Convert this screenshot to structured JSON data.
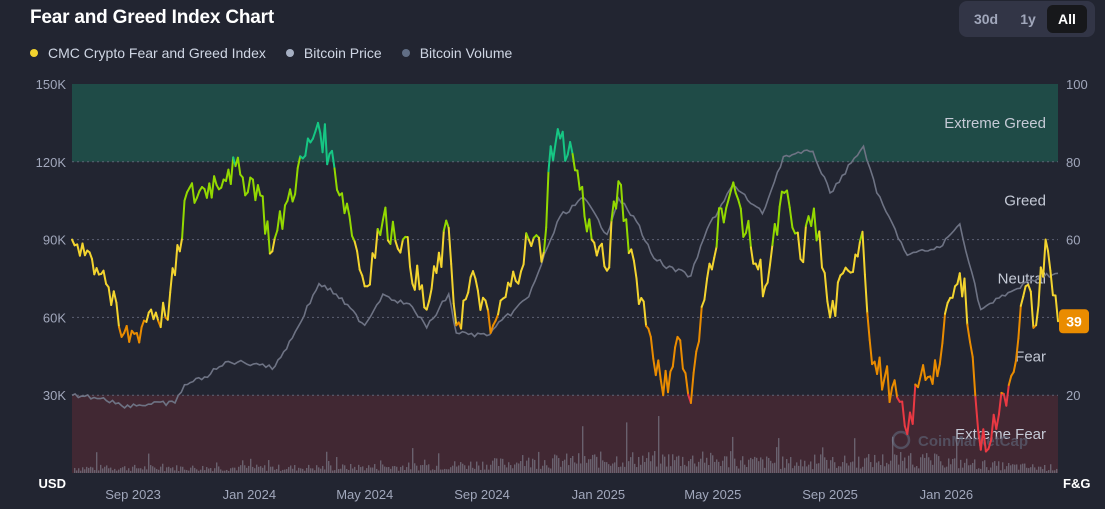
{
  "header": {
    "title": "Fear and Greed Index Chart",
    "ranges": [
      "30d",
      "1y",
      "All"
    ],
    "active_range": "All"
  },
  "legend": [
    {
      "label": "CMC Crypto Fear and Greed Index",
      "color": "#f3d42f"
    },
    {
      "label": "Bitcoin Price",
      "color": "#a6b0c3"
    },
    {
      "label": "Bitcoin Volume",
      "color": "#616e85"
    }
  ],
  "watermark": "CoinMarketCap",
  "chart_data": {
    "type": "line",
    "x_ticks": [
      "Sep 2023",
      "Jan 2024",
      "May 2024",
      "Sep 2024",
      "Jan 2025",
      "May 2025",
      "Sep 2025",
      "Jan 2026"
    ],
    "x_range": [
      "2023-06-29",
      "2026-04-28"
    ],
    "left_axis": {
      "label": "USD",
      "ticks": [
        "30K",
        "60K",
        "90K",
        "120K",
        "150K"
      ],
      "range": [
        0,
        150000
      ]
    },
    "right_axis": {
      "label": "F&G",
      "ticks": [
        "20",
        "40",
        "60",
        "80",
        "100"
      ],
      "range": [
        0,
        100
      ]
    },
    "zones": [
      {
        "label": "Extreme Greed",
        "from": 80,
        "to": 100,
        "color": "#16c784"
      },
      {
        "label": "Greed",
        "from": 60,
        "to": 80,
        "color": "#93d900"
      },
      {
        "label": "Neutral",
        "from": 40,
        "to": 60,
        "color": "#f3d42f"
      },
      {
        "label": "Fear",
        "from": 20,
        "to": 40,
        "color": "#ea8c00"
      },
      {
        "label": "Extreme Fear",
        "from": 0,
        "to": 20,
        "color": "#ea3943"
      }
    ],
    "current_value": "39",
    "series": [
      {
        "name": "CMC Crypto Fear and Greed Index",
        "axis": "right",
        "points": [
          [
            "2023-06-29",
            60
          ],
          [
            "2023-07-10",
            59
          ],
          [
            "2023-07-20",
            55
          ],
          [
            "2023-08-01",
            52
          ],
          [
            "2023-08-20",
            35
          ],
          [
            "2023-09-05",
            36
          ],
          [
            "2023-09-20",
            42
          ],
          [
            "2023-10-05",
            40
          ],
          [
            "2023-10-20",
            57
          ],
          [
            "2023-10-25",
            70
          ],
          [
            "2023-11-15",
            73
          ],
          [
            "2023-12-10",
            78
          ],
          [
            "2023-12-25",
            76
          ],
          [
            "2024-01-10",
            74
          ],
          [
            "2024-01-25",
            57
          ],
          [
            "2024-02-10",
            70
          ],
          [
            "2024-03-05",
            85
          ],
          [
            "2024-03-13",
            90
          ],
          [
            "2024-03-25",
            82
          ],
          [
            "2024-04-15",
            66
          ],
          [
            "2024-05-01",
            48
          ],
          [
            "2024-05-20",
            65
          ],
          [
            "2024-06-10",
            60
          ],
          [
            "2024-07-05",
            42
          ],
          [
            "2024-07-28",
            63
          ],
          [
            "2024-08-05",
            38
          ],
          [
            "2024-08-25",
            50
          ],
          [
            "2024-09-10",
            36
          ],
          [
            "2024-10-01",
            48
          ],
          [
            "2024-10-20",
            60
          ],
          [
            "2024-11-05",
            57
          ],
          [
            "2024-11-12",
            84
          ],
          [
            "2024-11-22",
            86
          ],
          [
            "2024-12-05",
            82
          ],
          [
            "2024-12-25",
            60
          ],
          [
            "2025-01-10",
            52
          ],
          [
            "2025-01-22",
            75
          ],
          [
            "2025-02-10",
            50
          ],
          [
            "2025-02-25",
            35
          ],
          [
            "2025-03-10",
            20
          ],
          [
            "2025-03-25",
            35
          ],
          [
            "2025-04-08",
            18
          ],
          [
            "2025-04-25",
            50
          ],
          [
            "2025-05-10",
            68
          ],
          [
            "2025-05-25",
            72
          ],
          [
            "2025-06-10",
            58
          ],
          [
            "2025-06-25",
            48
          ],
          [
            "2025-07-15",
            72
          ],
          [
            "2025-08-01",
            55
          ],
          [
            "2025-08-15",
            68
          ],
          [
            "2025-09-01",
            40
          ],
          [
            "2025-09-20",
            52
          ],
          [
            "2025-10-05",
            62
          ],
          [
            "2025-10-15",
            28
          ],
          [
            "2025-11-05",
            22
          ],
          [
            "2025-11-21",
            10
          ],
          [
            "2025-12-05",
            25
          ],
          [
            "2025-12-25",
            28
          ],
          [
            "2026-01-05",
            45
          ],
          [
            "2026-01-20",
            50
          ],
          [
            "2026-02-06",
            6
          ],
          [
            "2026-02-25",
            15
          ],
          [
            "2026-03-10",
            25
          ],
          [
            "2026-03-25",
            48
          ],
          [
            "2026-04-05",
            38
          ],
          [
            "2026-04-15",
            60
          ],
          [
            "2026-04-20",
            52
          ],
          [
            "2026-04-28",
            39
          ]
        ]
      },
      {
        "name": "Bitcoin Price",
        "axis": "left",
        "points": [
          [
            "2023-06-29",
            30000
          ],
          [
            "2023-08-01",
            29000
          ],
          [
            "2023-08-20",
            26000
          ],
          [
            "2023-10-15",
            27000
          ],
          [
            "2023-10-25",
            34000
          ],
          [
            "2023-11-15",
            37000
          ],
          [
            "2023-12-10",
            43000
          ],
          [
            "2024-01-15",
            42000
          ],
          [
            "2024-01-25",
            40000
          ],
          [
            "2024-02-15",
            52000
          ],
          [
            "2024-03-14",
            73000
          ],
          [
            "2024-04-01",
            69000
          ],
          [
            "2024-05-01",
            57000
          ],
          [
            "2024-05-20",
            69000
          ],
          [
            "2024-06-20",
            64000
          ],
          [
            "2024-07-05",
            56000
          ],
          [
            "2024-07-28",
            69000
          ],
          [
            "2024-08-05",
            54000
          ],
          [
            "2024-09-06",
            53000
          ],
          [
            "2024-10-20",
            68000
          ],
          [
            "2024-11-12",
            90000
          ],
          [
            "2024-11-22",
            99000
          ],
          [
            "2024-12-17",
            106000
          ],
          [
            "2025-01-10",
            92000
          ],
          [
            "2025-01-22",
            106000
          ],
          [
            "2025-02-10",
            97000
          ],
          [
            "2025-02-25",
            85000
          ],
          [
            "2025-03-10",
            80000
          ],
          [
            "2025-04-08",
            76000
          ],
          [
            "2025-04-25",
            94000
          ],
          [
            "2025-05-22",
            111000
          ],
          [
            "2025-06-22",
            100000
          ],
          [
            "2025-07-14",
            122000
          ],
          [
            "2025-08-14",
            124000
          ],
          [
            "2025-09-01",
            108000
          ],
          [
            "2025-10-06",
            126000
          ],
          [
            "2025-10-20",
            108000
          ],
          [
            "2025-11-21",
            84000
          ],
          [
            "2025-12-25",
            87000
          ],
          [
            "2026-01-15",
            96000
          ],
          [
            "2026-02-06",
            63000
          ],
          [
            "2026-03-10",
            70000
          ],
          [
            "2026-04-10",
            76000
          ],
          [
            "2026-04-28",
            77000
          ]
        ]
      },
      {
        "name": "Bitcoin Volume",
        "axis": "left",
        "shape": "bars along the bottom of the plot; heights not labeled"
      }
    ]
  }
}
